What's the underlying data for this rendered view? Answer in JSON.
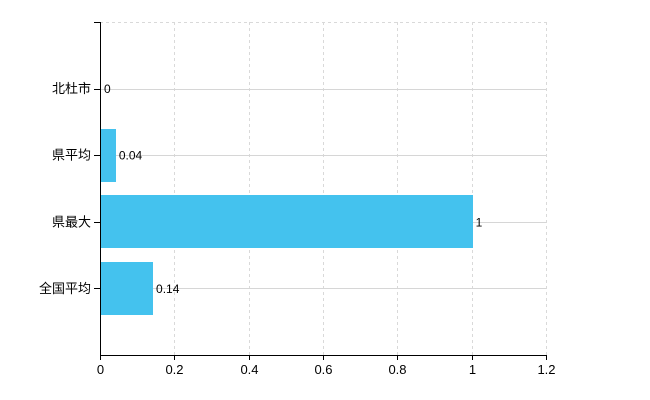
{
  "chart_data": {
    "type": "bar",
    "orientation": "horizontal",
    "title": "",
    "xlabel": "",
    "ylabel": "",
    "categories": [
      "北杜市",
      "県平均",
      "県最大",
      "全国平均"
    ],
    "values": [
      0,
      0.04,
      1,
      0.14
    ],
    "value_labels": [
      "0",
      "0.04",
      "1",
      "0.14"
    ],
    "xlim": [
      0,
      1.2
    ],
    "x_ticks": [
      0,
      0.2,
      0.4,
      0.6,
      0.8,
      1,
      1.2
    ],
    "x_tick_labels": [
      "0",
      "0.2",
      "0.4",
      "0.6",
      "0.8",
      "1",
      "1.2"
    ],
    "grid": true,
    "legend": false,
    "colors": {
      "bar": "#44C2EE",
      "axis": "#000000",
      "grid_vertical": "#D9D9D9",
      "grid_horizontal": "#D6D6D6",
      "text": "#000000",
      "background": "#FFFFFF"
    }
  }
}
